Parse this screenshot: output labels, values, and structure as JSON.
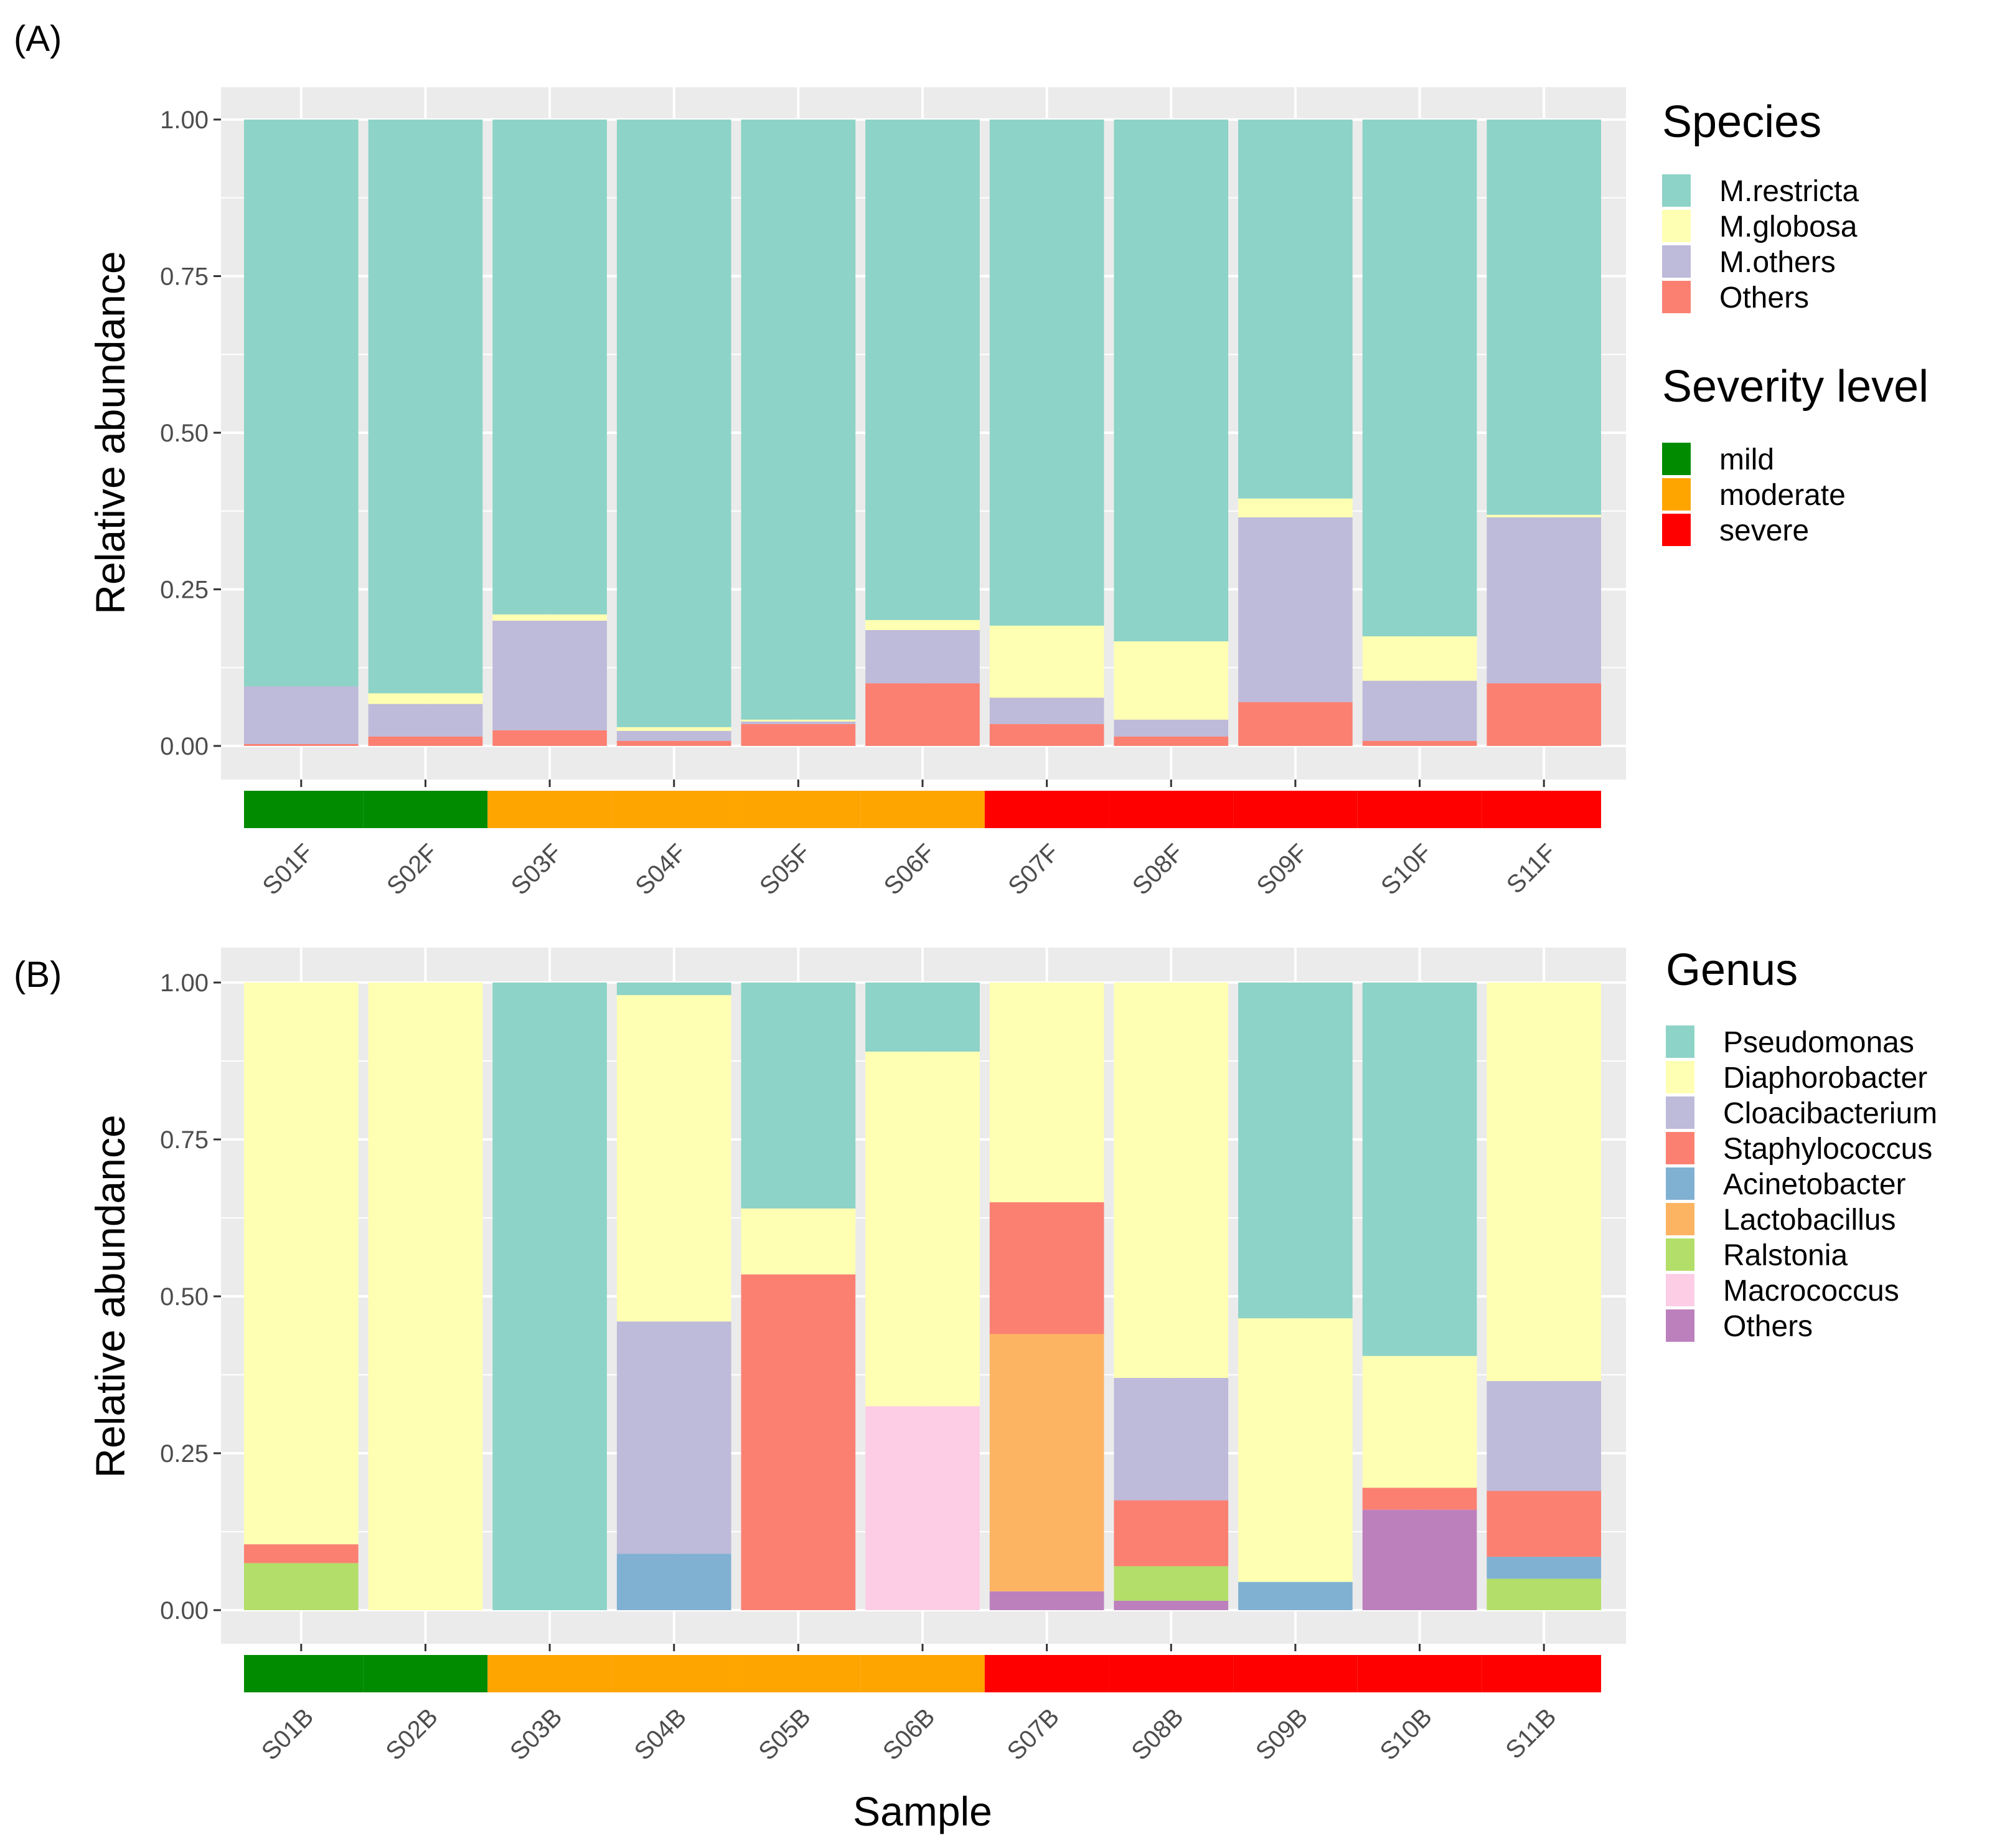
{
  "figure": {
    "panel_labels": [
      "(A)",
      "(B)"
    ],
    "x_axis_title": "Sample"
  },
  "severity_colors": {
    "mild": "#008B00",
    "moderate": "#FFA500",
    "severe": "#FF0000"
  },
  "chart_data": [
    {
      "type": "bar",
      "stacked": true,
      "panel": "(A)",
      "ylabel": "Relative abundance",
      "ylim": [
        0,
        1
      ],
      "yticks": [
        "0.00",
        "0.25",
        "0.50",
        "0.75",
        "1.00"
      ],
      "categories": [
        "S01F",
        "S02F",
        "S03F",
        "S04F",
        "S05F",
        "S06F",
        "S07F",
        "S08F",
        "S09F",
        "S10F",
        "S11F"
      ],
      "severity": [
        "mild",
        "mild",
        "moderate",
        "moderate",
        "moderate",
        "moderate",
        "severe",
        "severe",
        "severe",
        "severe",
        "severe"
      ],
      "legend_title": "Species",
      "severity_legend_title": "Severity level",
      "severity_legend": [
        "mild",
        "moderate",
        "severe"
      ],
      "series": [
        {
          "name": "Others",
          "color": "#FB8072",
          "values": [
            0.003,
            0.015,
            0.025,
            0.008,
            0.035,
            0.1,
            0.035,
            0.015,
            0.07,
            0.008,
            0.1
          ]
        },
        {
          "name": "M.others",
          "color": "#BEBADA",
          "values": [
            0.092,
            0.052,
            0.175,
            0.016,
            0.004,
            0.085,
            0.042,
            0.027,
            0.295,
            0.096,
            0.265
          ]
        },
        {
          "name": "M.globosa",
          "color": "#FFFFB3",
          "values": [
            0.0,
            0.017,
            0.01,
            0.006,
            0.003,
            0.016,
            0.115,
            0.125,
            0.03,
            0.071,
            0.004
          ]
        },
        {
          "name": "M.restricta",
          "color": "#8DD3C7",
          "values": [
            0.905,
            0.916,
            0.79,
            0.97,
            0.958,
            0.799,
            0.808,
            0.833,
            0.605,
            0.825,
            0.631
          ]
        }
      ],
      "legend_order": [
        "M.restricta",
        "M.globosa",
        "M.others",
        "Others"
      ]
    },
    {
      "type": "bar",
      "stacked": true,
      "panel": "(B)",
      "ylabel": "Relative abundance",
      "xlabel": "Sample",
      "ylim": [
        0,
        1
      ],
      "yticks": [
        "0.00",
        "0.25",
        "0.50",
        "0.75",
        "1.00"
      ],
      "categories": [
        "S01B",
        "S02B",
        "S03B",
        "S04B",
        "S05B",
        "S06B",
        "S07B",
        "S08B",
        "S09B",
        "S10B",
        "S11B"
      ],
      "severity": [
        "mild",
        "mild",
        "moderate",
        "moderate",
        "moderate",
        "moderate",
        "severe",
        "severe",
        "severe",
        "severe",
        "severe"
      ],
      "legend_title": "Genus",
      "series": [
        {
          "name": "Others",
          "color": "#BC80BD",
          "values": [
            0,
            0,
            0,
            0,
            0,
            0,
            0.03,
            0.015,
            0,
            0.16,
            0
          ]
        },
        {
          "name": "Macrococcus",
          "color": "#FCCDE5",
          "values": [
            0,
            0,
            0,
            0,
            0,
            0.325,
            0,
            0,
            0,
            0,
            0
          ]
        },
        {
          "name": "Ralstonia",
          "color": "#B3DE69",
          "values": [
            0.075,
            0,
            0,
            0,
            0,
            0,
            0,
            0.055,
            0,
            0,
            0.05
          ]
        },
        {
          "name": "Lactobacillus",
          "color": "#FDB462",
          "values": [
            0,
            0,
            0,
            0,
            0,
            0,
            0.41,
            0,
            0,
            0,
            0
          ]
        },
        {
          "name": "Acinetobacter",
          "color": "#80B1D3",
          "values": [
            0,
            0,
            0,
            0.09,
            0,
            0,
            0,
            0,
            0.045,
            0,
            0.035
          ]
        },
        {
          "name": "Staphylococcus",
          "color": "#FB8072",
          "values": [
            0.03,
            0,
            0,
            0,
            0.535,
            0,
            0.21,
            0.105,
            0,
            0.035,
            0.105
          ]
        },
        {
          "name": "Cloacibacterium",
          "color": "#BEBADA",
          "values": [
            0,
            0,
            0,
            0.37,
            0,
            0,
            0,
            0.195,
            0,
            0,
            0.175
          ]
        },
        {
          "name": "Diaphorobacter",
          "color": "#FFFFB3",
          "values": [
            0.895,
            1.0,
            0,
            0.52,
            0.105,
            0.565,
            0.35,
            0.63,
            0.42,
            0.21,
            0.635
          ]
        },
        {
          "name": "Pseudomonas",
          "color": "#8DD3C7",
          "values": [
            0,
            0,
            1.0,
            0.02,
            0.36,
            0.11,
            0,
            0,
            0.535,
            0.595,
            0
          ]
        }
      ],
      "legend_order": [
        "Pseudomonas",
        "Diaphorobacter",
        "Cloacibacterium",
        "Staphylococcus",
        "Acinetobacter",
        "Lactobacillus",
        "Ralstonia",
        "Macrococcus",
        "Others"
      ]
    }
  ]
}
